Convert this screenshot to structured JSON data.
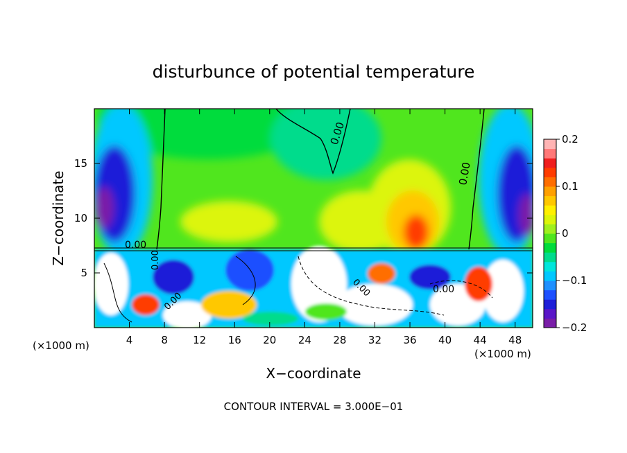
{
  "chart_data": {
    "type": "heatmap",
    "title": "disturbunce of potential temperature",
    "xlabel": "X−coordinate",
    "ylabel": "Z−coordinate",
    "x_unit_label": "(×1000 m)",
    "y_unit_label": "(×1000 m)",
    "xlim": [
      0,
      50
    ],
    "ylim": [
      0,
      20
    ],
    "x_ticks": [
      4,
      8,
      12,
      16,
      20,
      24,
      28,
      32,
      36,
      40,
      44,
      48
    ],
    "y_ticks": [
      5,
      10,
      15
    ],
    "colorbar": {
      "range": [
        -0.2,
        0.2
      ],
      "tick_values": [
        0.2,
        0.1,
        0,
        -0.1,
        -0.2
      ],
      "tick_labels": [
        "0.2",
        "0.1",
        "0",
        "−0.1",
        "−0.2"
      ],
      "colors": [
        "#7a1ea8",
        "#5a16c8",
        "#1e1ed8",
        "#1e50ff",
        "#1e90ff",
        "#00c8ff",
        "#00e6dc",
        "#00dc8c",
        "#00dc3c",
        "#50e61e",
        "#a0f01e",
        "#dcf50a",
        "#fff000",
        "#ffc800",
        "#ffa000",
        "#ff6e00",
        "#ff3c00",
        "#f01e1e",
        "#ff7878",
        "#ffb4b4"
      ]
    },
    "contour_labels": [
      "0.00",
      "0.00",
      "0.00",
      "0.00",
      "0.00",
      "0.00",
      "0.00"
    ],
    "footnote": "CONTOUR INTERVAL = 3.000E−01"
  }
}
